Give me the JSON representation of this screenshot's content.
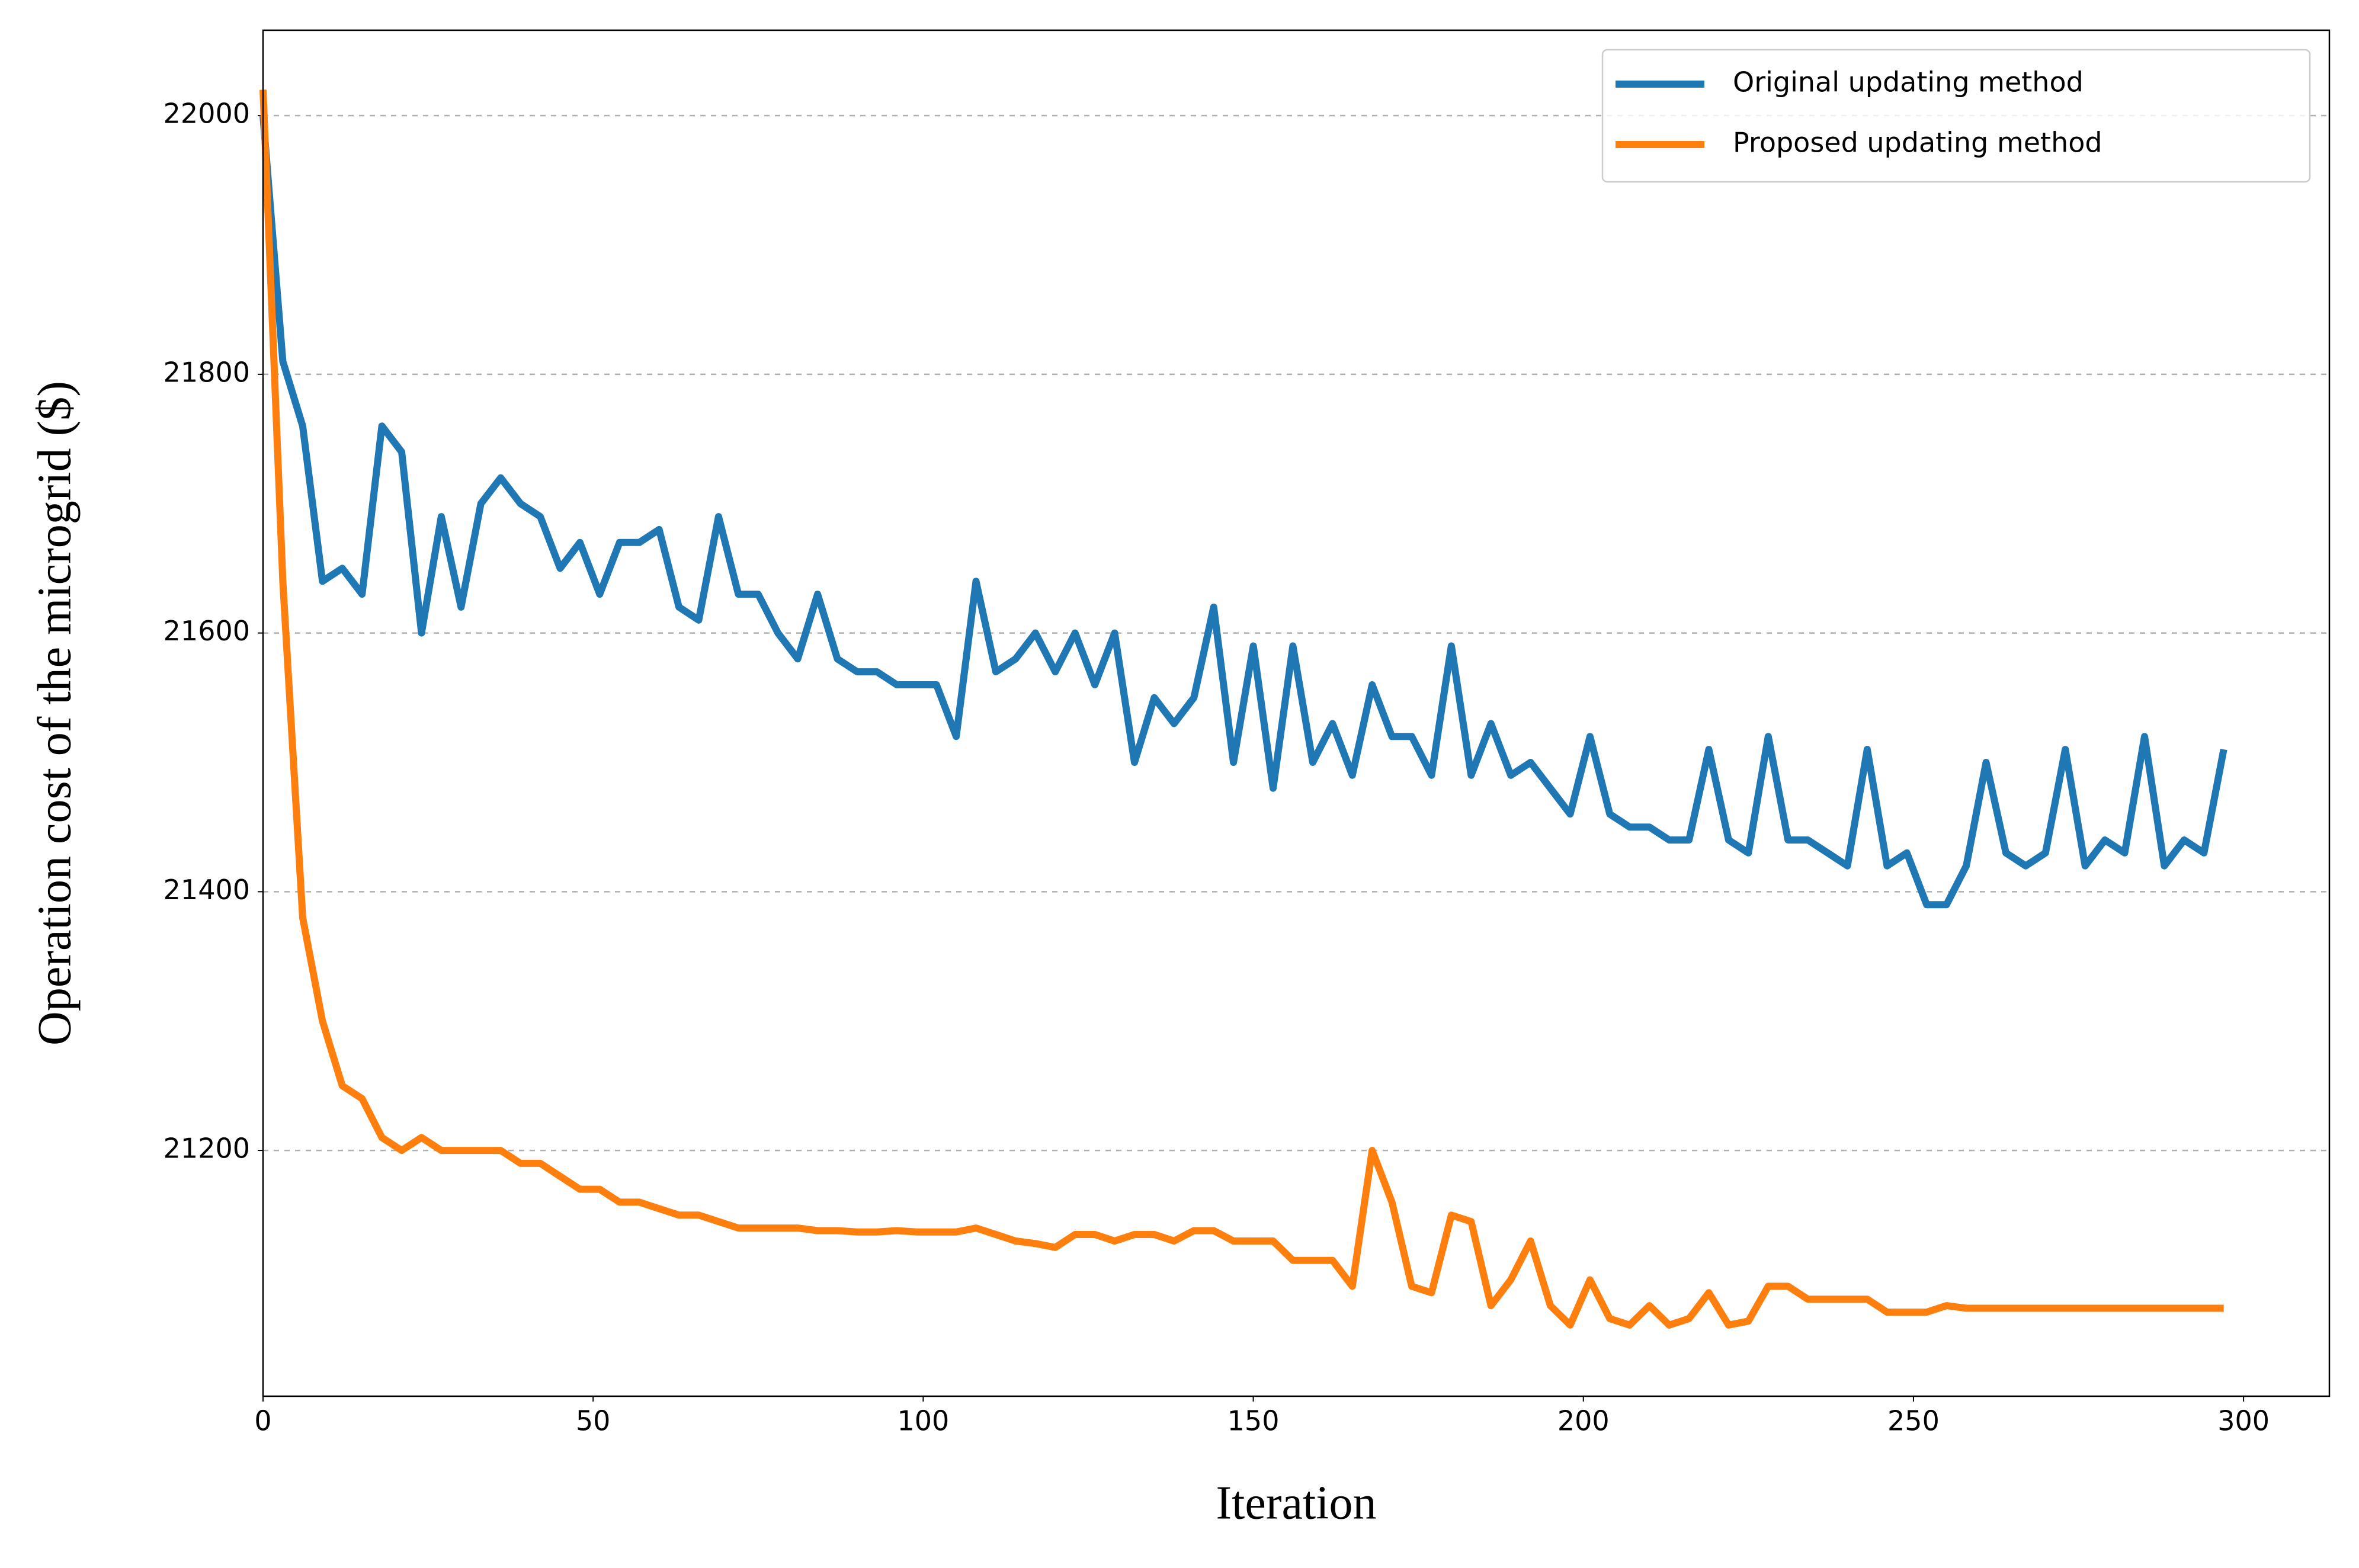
{
  "chart_data": {
    "type": "line",
    "xlabel": "Iteration",
    "ylabel": "Operation cost of the microgrid ($)",
    "x": [
      0,
      3,
      6,
      9,
      12,
      15,
      18,
      21,
      24,
      27,
      30,
      33,
      36,
      39,
      42,
      45,
      48,
      51,
      54,
      57,
      60,
      63,
      66,
      69,
      72,
      75,
      78,
      81,
      84,
      87,
      90,
      93,
      96,
      99,
      102,
      105,
      108,
      111,
      114,
      117,
      120,
      123,
      126,
      129,
      132,
      135,
      138,
      141,
      144,
      147,
      150,
      153,
      156,
      159,
      162,
      165,
      168,
      171,
      174,
      177,
      180,
      183,
      186,
      189,
      192,
      195,
      198,
      201,
      204,
      207,
      210,
      213,
      216,
      219,
      222,
      225,
      228,
      231,
      234,
      237,
      240,
      243,
      246,
      249,
      252,
      255,
      258,
      261,
      264,
      267,
      270,
      273,
      276,
      279,
      282,
      285,
      288,
      291,
      294,
      297
    ],
    "series": [
      {
        "name": "Original updating method",
        "color": "#1f77b4",
        "values": [
          22000,
          21810,
          21760,
          21640,
          21650,
          21630,
          21760,
          21740,
          21600,
          21690,
          21620,
          21700,
          21720,
          21700,
          21690,
          21650,
          21670,
          21630,
          21670,
          21670,
          21680,
          21620,
          21610,
          21690,
          21630,
          21630,
          21600,
          21580,
          21630,
          21580,
          21570,
          21570,
          21560,
          21560,
          21560,
          21520,
          21640,
          21570,
          21580,
          21600,
          21570,
          21600,
          21560,
          21600,
          21500,
          21550,
          21530,
          21550,
          21620,
          21500,
          21590,
          21480,
          21590,
          21500,
          21530,
          21490,
          21560,
          21520,
          21520,
          21490,
          21590,
          21490,
          21530,
          21490,
          21500,
          21480,
          21460,
          21520,
          21460,
          21450,
          21450,
          21440,
          21440,
          21510,
          21440,
          21430,
          21520,
          21440,
          21440,
          21430,
          21420,
          21510,
          21420,
          21430,
          21390,
          21390,
          21420,
          21500,
          21430,
          21420,
          21430,
          21510,
          21420,
          21440,
          21430,
          21520,
          21420,
          21440,
          21430,
          21510
        ]
      },
      {
        "name": "Proposed updating method",
        "color": "#ff7f0e",
        "values": [
          22020,
          21640,
          21380,
          21300,
          21250,
          21240,
          21210,
          21200,
          21210,
          21200,
          21200,
          21200,
          21200,
          21190,
          21190,
          21180,
          21170,
          21170,
          21160,
          21160,
          21155,
          21150,
          21150,
          21145,
          21140,
          21140,
          21140,
          21140,
          21138,
          21138,
          21137,
          21137,
          21138,
          21137,
          21137,
          21137,
          21140,
          21135,
          21130,
          21128,
          21125,
          21135,
          21135,
          21130,
          21135,
          21135,
          21130,
          21138,
          21138,
          21130,
          21130,
          21130,
          21115,
          21115,
          21115,
          21095,
          21200,
          21160,
          21095,
          21090,
          21150,
          21145,
          21080,
          21100,
          21130,
          21080,
          21065,
          21100,
          21070,
          21065,
          21080,
          21065,
          21070,
          21090,
          21065,
          21068,
          21095,
          21095,
          21085,
          21085,
          21085,
          21085,
          21075,
          21075,
          21075,
          21080,
          21078,
          21078,
          21078,
          21078,
          21078,
          21078,
          21078,
          21078,
          21078,
          21078,
          21078,
          21078,
          21078,
          21078
        ]
      }
    ],
    "xlim": [
      0,
      313
    ],
    "ylim": [
      21010,
      22066
    ],
    "xticks": [
      0,
      50,
      100,
      150,
      200,
      250,
      300
    ],
    "yticks": [
      21200,
      21400,
      21600,
      21800,
      22000
    ],
    "grid": true,
    "legend": "upper right"
  }
}
